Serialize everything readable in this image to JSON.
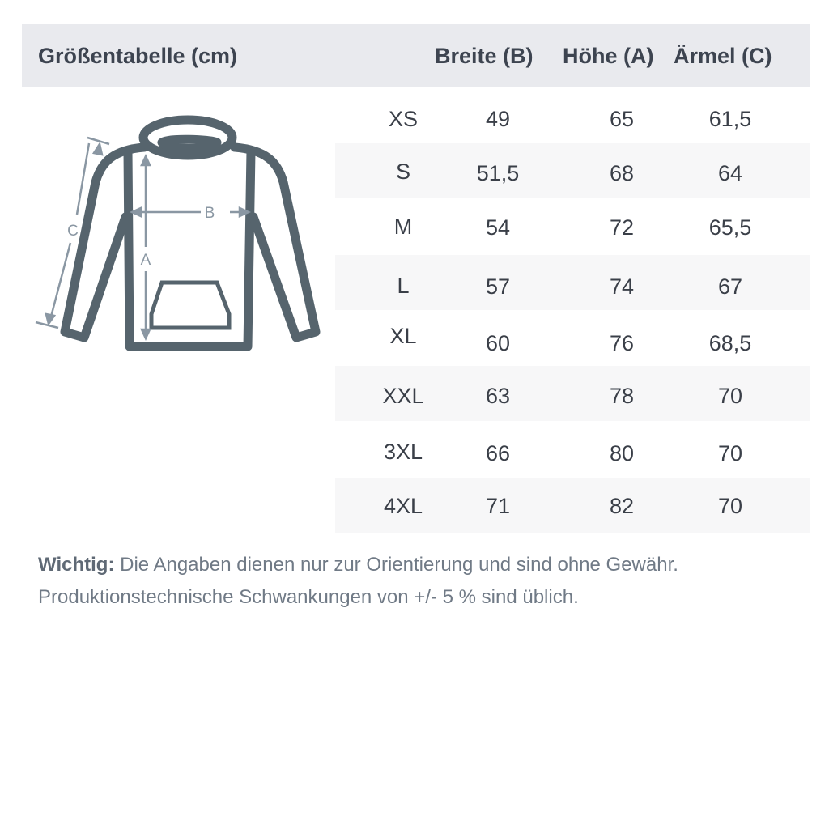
{
  "header": {
    "title": "Größentabelle (cm)",
    "columns": [
      "Breite (B)",
      "Höhe (A)",
      "Ärmel (C)"
    ]
  },
  "rows": [
    {
      "size": "XS",
      "breite": "49",
      "hoehe": "65",
      "aermel": "61,5"
    },
    {
      "size": "S",
      "breite": "51,5",
      "hoehe": "68",
      "aermel": "64"
    },
    {
      "size": "M",
      "breite": "54",
      "hoehe": "72",
      "aermel": "65,5"
    },
    {
      "size": "L",
      "breite": "57",
      "hoehe": "74",
      "aermel": "67"
    },
    {
      "size": "XL",
      "breite": "60",
      "hoehe": "76",
      "aermel": "68,5"
    },
    {
      "size": "XXL",
      "breite": "63",
      "hoehe": "78",
      "aermel": "70"
    },
    {
      "size": "3XL",
      "breite": "66",
      "hoehe": "80",
      "aermel": "70"
    },
    {
      "size": "4XL",
      "breite": "71",
      "hoehe": "82",
      "aermel": "70"
    }
  ],
  "diagram": {
    "labels": {
      "a": "A",
      "b": "B",
      "c": "C"
    }
  },
  "note": {
    "bold": "Wichtig:",
    "line1": " Die Angaben dienen nur zur Orientierung und sind ohne Gewähr.",
    "line2": "Produktionstechnische Schwankungen von +/- 5 % sind üblich."
  },
  "colors": {
    "header_bg": "#e9eaee",
    "stripe": "#f7f7f8",
    "hoodie": "#56646d",
    "measure": "#8a97a3"
  }
}
